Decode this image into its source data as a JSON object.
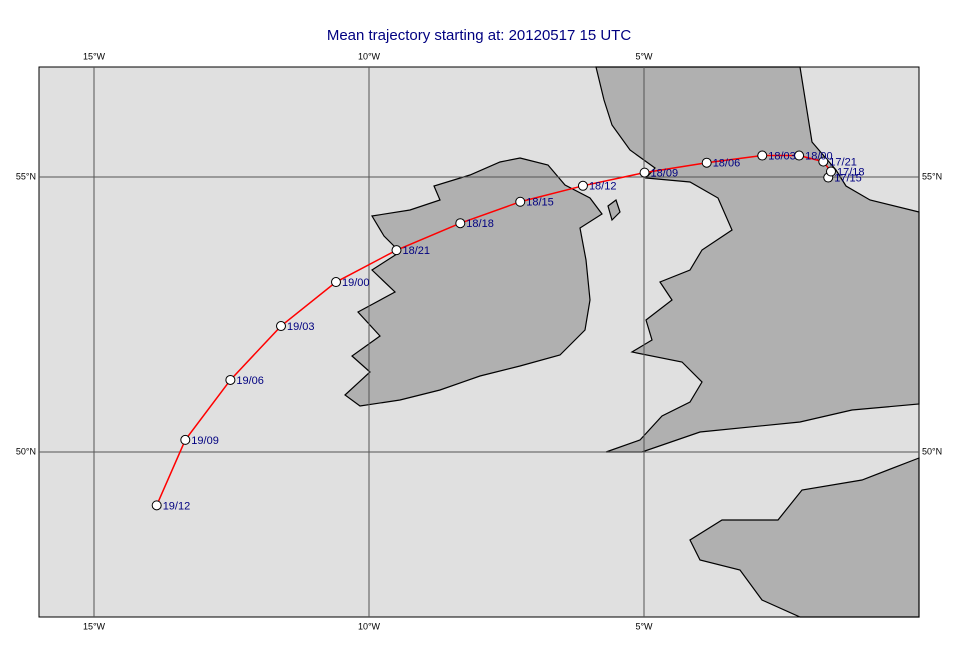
{
  "chart_data": {
    "type": "trajectory",
    "title": "Mean trajectory starting at: 20120517 15 UTC",
    "xlim": [
      -16,
      0
    ],
    "ylim": [
      47,
      57
    ],
    "xticks": [
      {
        "value": -15,
        "label": "15°W"
      },
      {
        "value": -10,
        "label": "10°W"
      },
      {
        "value": -5,
        "label": "5°W"
      }
    ],
    "yticks": [
      {
        "value": 50,
        "label": "50°N"
      },
      {
        "value": 55,
        "label": "55°N"
      }
    ],
    "grid": true,
    "color": "#ff0000",
    "x": [
      -1.65,
      -1.6,
      -1.74,
      -2.18,
      -2.85,
      -3.86,
      -4.99,
      -6.11,
      -7.25,
      -8.34,
      -9.5,
      -10.6,
      -11.6,
      -12.52,
      -13.34,
      -13.86
    ],
    "values": [
      54.99,
      55.1,
      55.28,
      55.39,
      55.39,
      55.26,
      55.08,
      54.84,
      54.55,
      54.16,
      53.67,
      53.09,
      52.29,
      51.31,
      50.22,
      49.03
    ],
    "point_labels": [
      "17/15",
      "17/18",
      "17/21",
      "18/00",
      "18/03",
      "18/06",
      "18/09",
      "18/12",
      "18/15",
      "18/18",
      "18/21",
      "19/00",
      "19/03",
      "19/06",
      "19/09",
      "19/12"
    ]
  }
}
